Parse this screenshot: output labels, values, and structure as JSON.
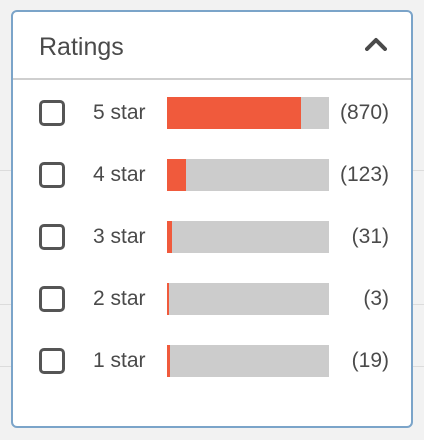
{
  "ratings_panel": {
    "title": "Ratings",
    "collapse_icon": "chevron-up-icon",
    "colors": {
      "bar_fill": "#f05a3c",
      "bar_track": "#cccccc",
      "panel_border": "#7ba4c9"
    },
    "items": [
      {
        "label": "5 star",
        "count": "(870)",
        "value": 870,
        "fill_fraction": 0.83,
        "checked": false
      },
      {
        "label": "4 star",
        "count": "(123)",
        "value": 123,
        "fill_fraction": 0.12,
        "checked": false
      },
      {
        "label": "3 star",
        "count": "(31)",
        "value": 31,
        "fill_fraction": 0.03,
        "checked": false
      },
      {
        "label": "2 star",
        "count": "(3)",
        "value": 3,
        "fill_fraction": 0.01,
        "checked": false
      },
      {
        "label": "1 star",
        "count": "(19)",
        "value": 19,
        "fill_fraction": 0.02,
        "checked": false
      }
    ]
  }
}
